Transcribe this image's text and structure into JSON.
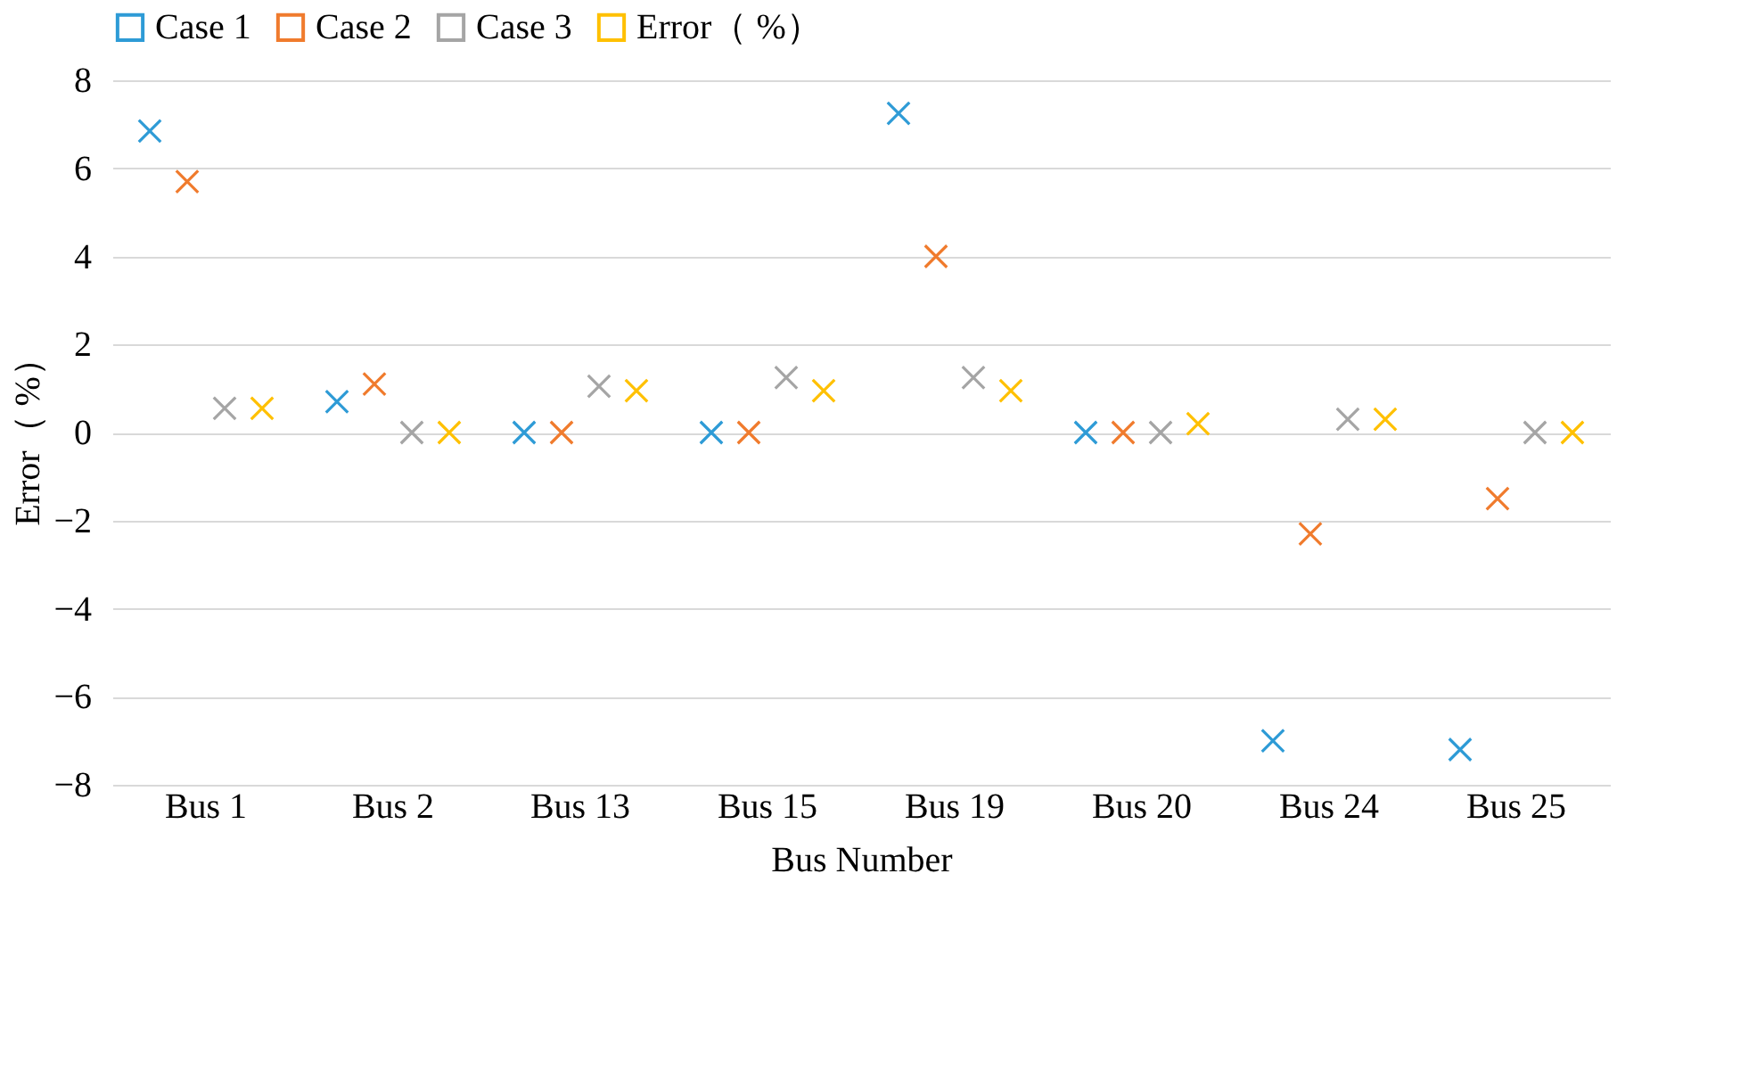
{
  "chart_data": {
    "type": "scatter",
    "xlabel": "Bus Number",
    "ylabel": "Error（ %）",
    "categories": [
      "Bus 1",
      "Bus 2",
      "Bus 13",
      "Bus 15",
      "Bus 19",
      "Bus 20",
      "Bus 24",
      "Bus 25"
    ],
    "series": [
      {
        "name": "Case 1",
        "color": "#2e9bd6",
        "values": [
          6.85,
          0.7,
          0,
          0,
          7.25,
          0,
          -7.0,
          -7.2
        ]
      },
      {
        "name": "Case 2",
        "color": "#f07b2d",
        "values": [
          5.7,
          1.1,
          0,
          0,
          4.0,
          0,
          -2.3,
          -1.5
        ]
      },
      {
        "name": "Case 3",
        "color": "#a5a5a5",
        "values": [
          0.55,
          0,
          1.05,
          1.25,
          1.25,
          0,
          0.3,
          0
        ]
      },
      {
        "name": "Error（ %）",
        "color": "#ffc000",
        "values": [
          0.55,
          0,
          0.95,
          0.95,
          0.95,
          0.2,
          0.3,
          0
        ]
      }
    ],
    "ylim": [
      -8,
      8
    ],
    "yticks": [
      -8,
      -6,
      -4,
      -2,
      0,
      2,
      4,
      6,
      8
    ],
    "grid": "y",
    "legend": "top",
    "marker": "cross"
  }
}
